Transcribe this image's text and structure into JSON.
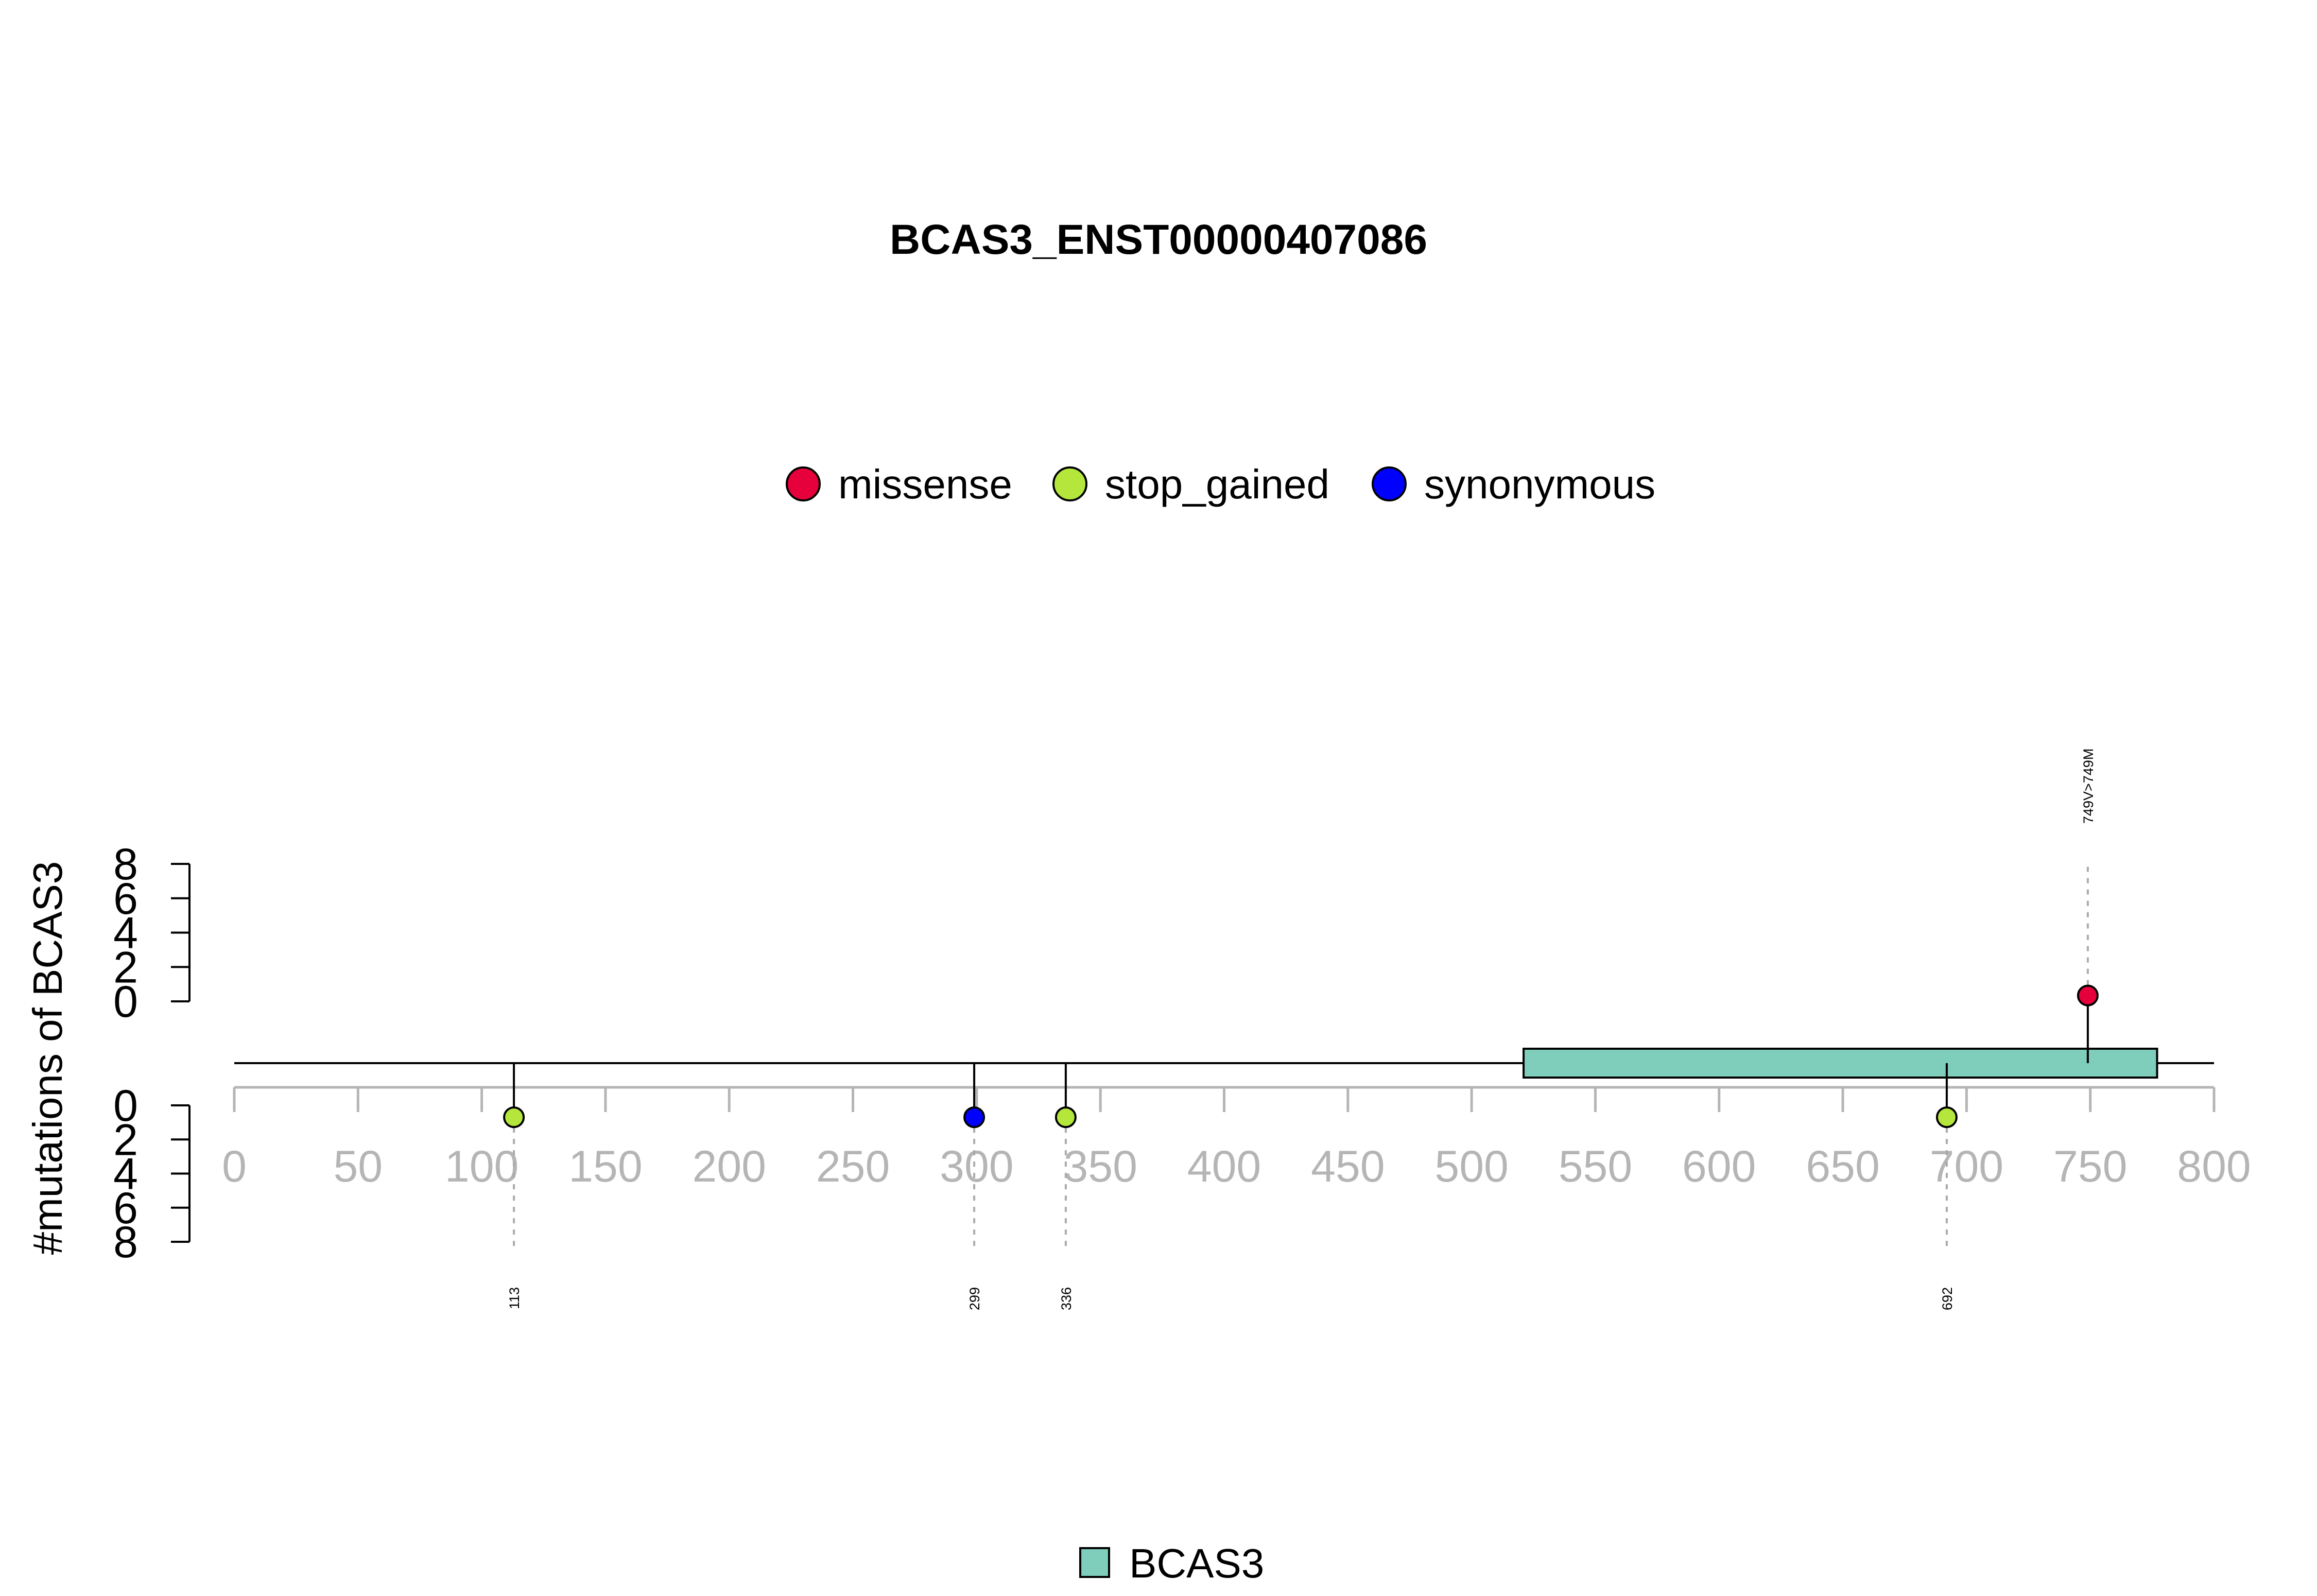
{
  "chart_data": {
    "type": "lollipop",
    "title": "BCAS3_ENST00000407086",
    "ylabel": "#mutations of BCAS3",
    "xlim": [
      0,
      800
    ],
    "x_ticks": [
      "0",
      "50",
      "100",
      "150",
      "200",
      "250",
      "300",
      "350",
      "400",
      "450",
      "500",
      "550",
      "600",
      "650",
      "700",
      "750",
      "800"
    ],
    "y_ticks": [
      "0",
      "2",
      "4",
      "6",
      "8"
    ],
    "ylim": [
      0,
      8
    ],
    "legend_mutation": [
      {
        "name": "missense",
        "color": "#e6003c"
      },
      {
        "name": "stop_gained",
        "color": "#b5e63c"
      },
      {
        "name": "synonymous",
        "color": "#0000ff"
      }
    ],
    "legend_domain": [
      {
        "name": "BCAS3",
        "color": "#7fcdbb"
      }
    ],
    "domains": [
      {
        "name": "BCAS3",
        "start": 521,
        "end": 777,
        "color": "#7fcdbb"
      }
    ],
    "mutations": [
      {
        "position": 113,
        "label": "113",
        "type": "stop_gained",
        "count": 1,
        "side": "bottom"
      },
      {
        "position": 299,
        "label": "299",
        "type": "synonymous",
        "count": 1,
        "side": "bottom"
      },
      {
        "position": 336,
        "label": "336",
        "type": "stop_gained",
        "count": 1,
        "side": "bottom"
      },
      {
        "position": 692,
        "label": "692",
        "type": "stop_gained",
        "count": 1,
        "side": "bottom"
      },
      {
        "position": 749,
        "label": "749V>749M",
        "type": "missense",
        "count": 1,
        "side": "top"
      }
    ]
  }
}
